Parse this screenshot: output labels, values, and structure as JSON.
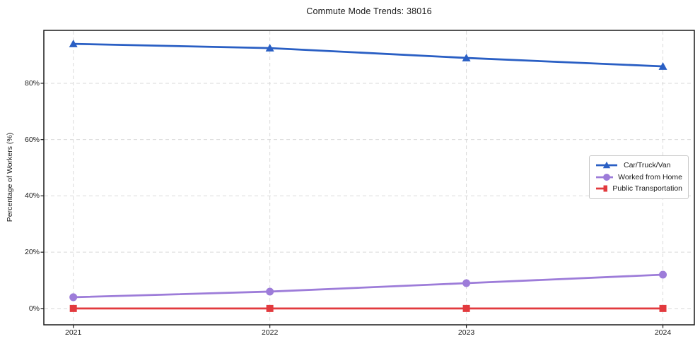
{
  "chart": {
    "title": "Commute Mode Trends: 38016",
    "ylabel": "Percentage of Workers (%)"
  },
  "chart_data": {
    "type": "line",
    "title": "Commute Mode Trends: 38016",
    "xlabel": "",
    "ylabel": "Percentage of Workers (%)",
    "x": [
      2021,
      2022,
      2023,
      2024
    ],
    "x_tick_labels": [
      "2021",
      "2022",
      "2023",
      "2024"
    ],
    "y_ticks": [
      0,
      20,
      40,
      60,
      80
    ],
    "y_tick_labels": [
      "0%",
      "20%",
      "40%",
      "60%",
      "80%"
    ],
    "xlim": [
      2020.85,
      2024.16
    ],
    "ylim": [
      -5.8,
      98.8
    ],
    "grid": true,
    "legend_position": "center right",
    "series": [
      {
        "name": "Car/Truck/Van",
        "values": [
          94,
          92.5,
          89,
          86
        ],
        "color": "#2a5fc4",
        "marker": "triangle"
      },
      {
        "name": "Worked from Home",
        "values": [
          4,
          6,
          9,
          12
        ],
        "color": "#9d7cd9",
        "marker": "circle"
      },
      {
        "name": "Public Transportation",
        "values": [
          0,
          0,
          0,
          0
        ],
        "color": "#e23a3e",
        "marker": "square"
      }
    ],
    "colors": {
      "grid": "#d9d9d9",
      "spine": "#1a1a1a",
      "text": "#1a1a1a",
      "background": "#ffffff"
    }
  }
}
